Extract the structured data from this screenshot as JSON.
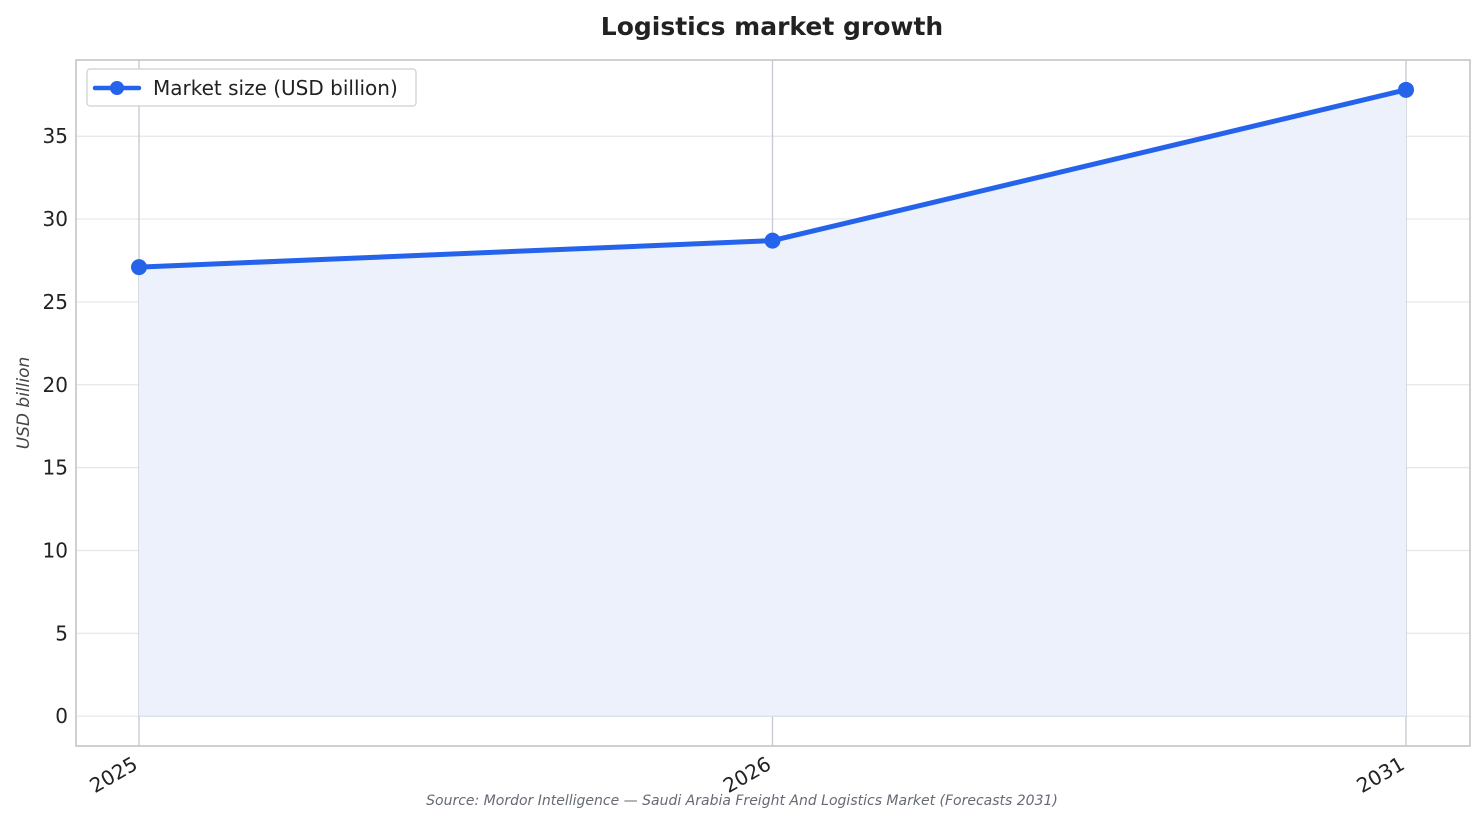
{
  "chart_data": {
    "type": "line",
    "title": "Logistics market growth",
    "xlabel": "",
    "ylabel": "USD billion",
    "categories": [
      "2025",
      "2026",
      "2031"
    ],
    "series": [
      {
        "name": "Market size (USD billion)",
        "values": [
          27.1,
          28.7,
          37.8
        ]
      }
    ],
    "ylim": [
      -1.8,
      39.6
    ],
    "yticks": [
      0,
      5,
      10,
      15,
      20,
      25,
      30,
      35
    ],
    "grid": true,
    "area_fill": true,
    "legend_position": "top-left",
    "source": "Source: Mordor Intelligence — Saudi Arabia Freight And Logistics Market (Forecasts 2031)"
  },
  "colors": {
    "line": "#2563eb",
    "fill": "#ecf1fc",
    "grid": "#e6e6e6",
    "frame": "#c4c4c4",
    "vline": "#c8ccd4"
  }
}
